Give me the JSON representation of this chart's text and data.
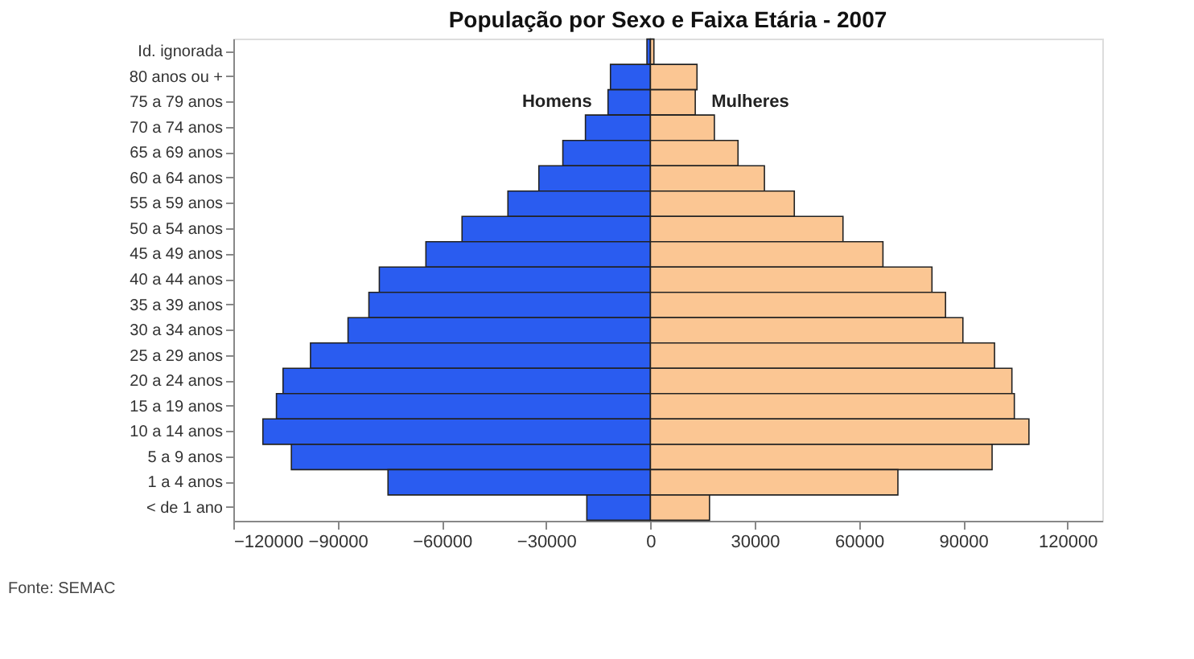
{
  "chart_data": {
    "type": "bar",
    "orientation": "horizontal",
    "title": "População por Sexo e Faixa Etária - 2007",
    "categories": [
      "Id. ignorada",
      "80 anos ou +",
      "75 a 79 anos",
      "70 a 74 anos",
      "65 a 69 anos",
      "60 a 64 anos",
      "55 a 59 anos",
      "50 a 54 anos",
      "45 a 49 anos",
      "40 a 44 anos",
      "35 a 39 anos",
      "30 a 34 anos",
      "25 a 29 anos",
      "20 a 24 anos",
      "15 a 19 anos",
      "10 a 14 anos",
      "5 a 9 anos",
      "1 a 4 anos",
      "< de 1 ano"
    ],
    "series": [
      {
        "name": "Homens",
        "color": "#2a5cf0",
        "values": [
          -1000,
          -11500,
          -12200,
          -18700,
          -25200,
          -32100,
          -41000,
          -54200,
          -64600,
          -78000,
          -81000,
          -87000,
          -97800,
          -105700,
          -107600,
          -111500,
          -103300,
          -75500,
          -18300
        ]
      },
      {
        "name": "Mulheres",
        "color": "#fbc693",
        "values": [
          1000,
          13400,
          12900,
          18400,
          25200,
          32800,
          41400,
          55400,
          66900,
          81000,
          84900,
          89900,
          99000,
          104000,
          104700,
          108900,
          98300,
          71200,
          17000
        ]
      }
    ],
    "xlim": [
      -120000,
      130000
    ],
    "xticks": [
      -120000,
      -90000,
      -60000,
      -30000,
      0,
      30000,
      60000,
      90000,
      120000
    ],
    "stacked": true,
    "grid": false,
    "legend": false,
    "annotations": [
      "Fonte: SEMAC"
    ]
  }
}
